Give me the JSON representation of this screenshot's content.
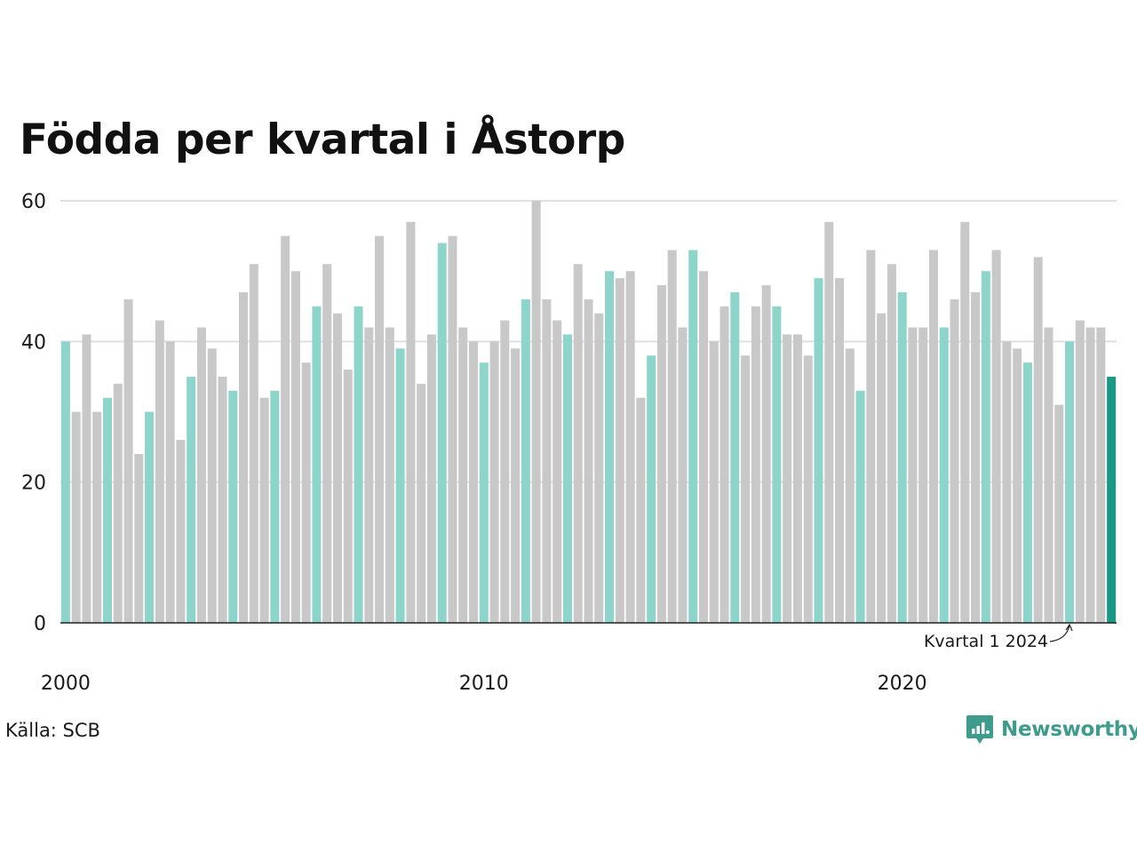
{
  "chart_data": {
    "type": "bar",
    "title": "Födda per kvartal i Åstorp",
    "ylim": [
      0,
      60
    ],
    "yticks": [
      0,
      20,
      40,
      60
    ],
    "x_tick_labels": [
      "2000",
      "2010",
      "2020"
    ],
    "x_tick_quarters": [
      1,
      41,
      81
    ],
    "grid": true,
    "annotation": {
      "label": "Kvartal 1 2024",
      "quarter": 97
    },
    "colors": {
      "q1": "#8dd4cb",
      "other": "#c8c8c8",
      "latest": "#1a9886"
    },
    "values": [
      40,
      30,
      41,
      30,
      32,
      34,
      46,
      24,
      30,
      43,
      40,
      26,
      35,
      42,
      39,
      35,
      33,
      47,
      51,
      32,
      33,
      55,
      50,
      37,
      45,
      51,
      44,
      36,
      45,
      42,
      55,
      42,
      39,
      57,
      34,
      41,
      54,
      55,
      42,
      40,
      37,
      40,
      43,
      39,
      46,
      60,
      46,
      43,
      41,
      51,
      46,
      44,
      50,
      49,
      50,
      32,
      38,
      48,
      53,
      42,
      53,
      50,
      40,
      45,
      47,
      38,
      45,
      48,
      45,
      41,
      41,
      38,
      49,
      57,
      49,
      39,
      33,
      53,
      44,
      51,
      47,
      42,
      42,
      53,
      42,
      46,
      57,
      47,
      50,
      53,
      40,
      39,
      37,
      52,
      42,
      31,
      40,
      43,
      42,
      42,
      35
    ]
  },
  "source": "Källa: SCB",
  "brand": {
    "name": "Newsworthy",
    "color": "#3e9c8c",
    "icon": "chart-speech-bubble-icon"
  }
}
